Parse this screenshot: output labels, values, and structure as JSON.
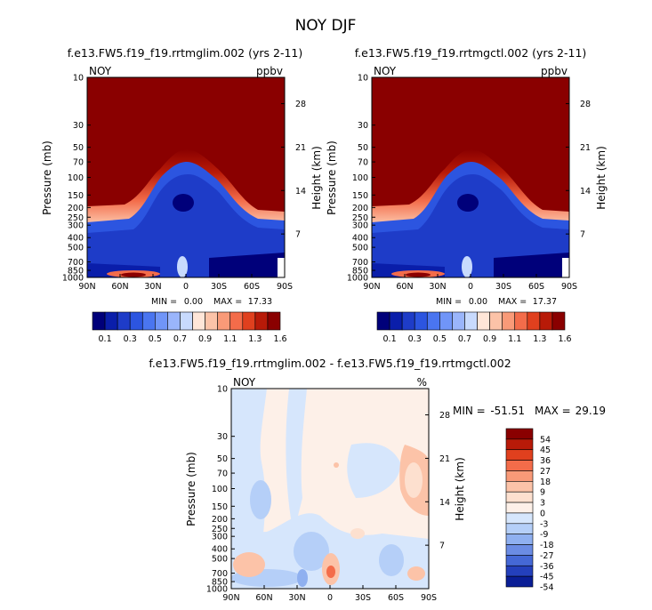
{
  "chart_data": [
    {
      "type": "heatmap",
      "title": "NOY DJF",
      "subtitle": "f.e13.FW5.f19_f19.rrtmglim.002 (yrs 2-11)",
      "variable": "NOY",
      "units": "ppbv",
      "ylabel": "Pressure (mb)",
      "ylabel_right": "Height (km)",
      "x_ticks": [
        "90N",
        "60N",
        "30N",
        "0",
        "30S",
        "60S",
        "90S"
      ],
      "y_ticks": [
        "10",
        "30",
        "50",
        "70",
        "100",
        "150",
        "200",
        "250",
        "300",
        "400",
        "500",
        "700",
        "850",
        "1000"
      ],
      "y_ticks_right": [
        "28",
        "21",
        "14",
        "7"
      ],
      "min_label": "MIN =",
      "min_value": "0.00",
      "max_label": "MAX =",
      "max_value": "17.33",
      "colorbar_labels": [
        "0.1",
        "0.3",
        "0.5",
        "0.7",
        "0.9",
        "1.1",
        "1.3",
        "1.6"
      ]
    },
    {
      "type": "heatmap",
      "subtitle": "f.e13.FW5.f19_f19.rrtmgctl.002 (yrs 2-11)",
      "variable": "NOY",
      "units": "ppbv",
      "ylabel": "Pressure (mb)",
      "ylabel_right": "Height (km)",
      "x_ticks": [
        "90N",
        "60N",
        "30N",
        "0",
        "30S",
        "60S",
        "90S"
      ],
      "y_ticks": [
        "10",
        "30",
        "50",
        "70",
        "100",
        "150",
        "200",
        "250",
        "300",
        "400",
        "500",
        "700",
        "850",
        "1000"
      ],
      "y_ticks_right": [
        "28",
        "21",
        "14",
        "7"
      ],
      "min_label": "MIN =",
      "min_value": "0.00",
      "max_label": "MAX =",
      "max_value": "17.37",
      "colorbar_labels": [
        "0.1",
        "0.3",
        "0.5",
        "0.7",
        "0.9",
        "1.1",
        "1.3",
        "1.6"
      ]
    },
    {
      "type": "heatmap",
      "subtitle": "f.e13.FW5.f19_f19.rrtmglim.002 - f.e13.FW5.f19_f19.rrtmgctl.002",
      "variable": "NOY",
      "units": "%",
      "ylabel": "Pressure (mb)",
      "ylabel_right": "Height (km)",
      "x_ticks": [
        "90N",
        "60N",
        "30N",
        "0",
        "30S",
        "60S",
        "90S"
      ],
      "y_ticks": [
        "10",
        "30",
        "50",
        "70",
        "100",
        "150",
        "200",
        "250",
        "300",
        "400",
        "500",
        "700",
        "850",
        "1000"
      ],
      "y_ticks_right": [
        "28",
        "21",
        "14",
        "7"
      ],
      "min_label": "MIN =",
      "min_value": "-51.51",
      "max_label": "MAX =",
      "max_value": "29.19",
      "colorbar_labels": [
        "54",
        "45",
        "36",
        "27",
        "18",
        "9",
        "3",
        "0",
        "-3",
        "-9",
        "-18",
        "-27",
        "-36",
        "-45",
        "-54"
      ]
    }
  ],
  "colors": {
    "blue_scale": [
      "#00007a",
      "#0a1eaa",
      "#1e3cc8",
      "#2c55e0",
      "#4a75f0",
      "#7095f8",
      "#9ab5fb",
      "#c8dafd",
      "#ffe6d8",
      "#fcc3a8",
      "#f99a78",
      "#f36c4a",
      "#e0401e",
      "#b81a08",
      "#8a0000"
    ],
    "diff_scale": [
      "#8a0000",
      "#b81a08",
      "#e0401e",
      "#f36c4a",
      "#f99a78",
      "#fcc3a8",
      "#fde0cf",
      "#fdf0e8",
      "#d6e6fc",
      "#b5cff8",
      "#8fb0f0",
      "#6b8ce4",
      "#4568d6",
      "#2440bc",
      "#0a1e96"
    ]
  }
}
